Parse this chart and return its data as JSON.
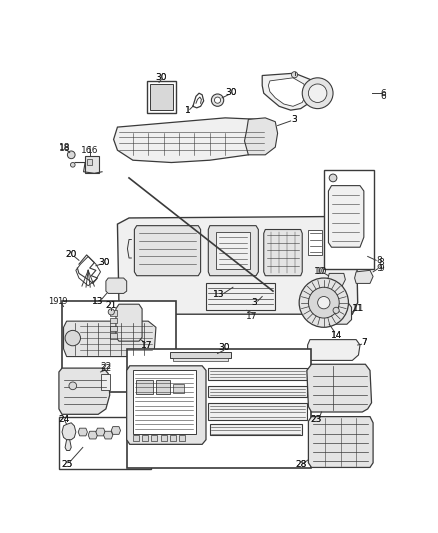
{
  "bg_color": "#ffffff",
  "line_color": "#3a3a3a",
  "text_color": "#1a1a1a",
  "label_fontsize": 6.5,
  "border_color": "#888888",
  "part_fill": "#f0f0f0",
  "part_fill2": "#e4e4e4",
  "part_fill3": "#d8d8d8"
}
